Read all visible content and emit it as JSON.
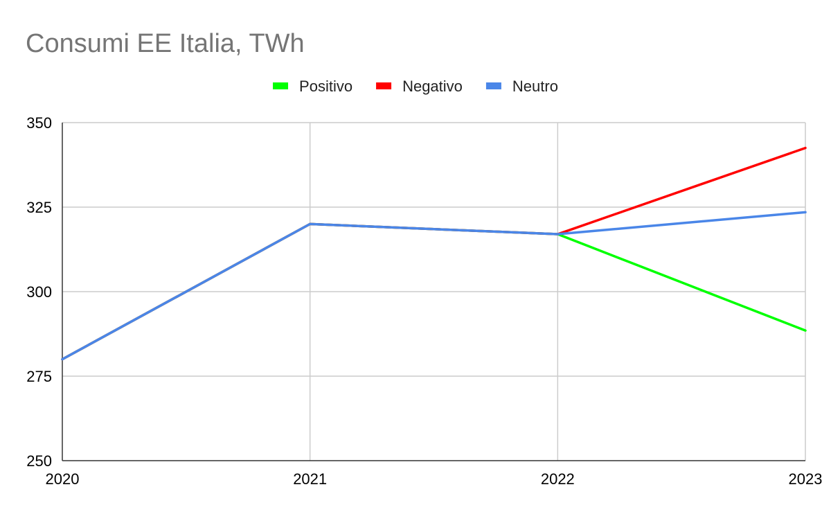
{
  "chart_data": {
    "type": "line",
    "title": "Consumi EE Italia, TWh",
    "xlabel": "",
    "ylabel": "",
    "x": [
      "2020",
      "2021",
      "2022",
      "2023"
    ],
    "ylim": [
      250,
      350
    ],
    "yticks": [
      250,
      275,
      300,
      325,
      350
    ],
    "grid": true,
    "legend_position": "top",
    "series": [
      {
        "name": "Positivo",
        "color": "#00ff00",
        "values": [
          280,
          320,
          317,
          288.5
        ]
      },
      {
        "name": "Negativo",
        "color": "#ff0000",
        "values": [
          280,
          320,
          317,
          342.5
        ]
      },
      {
        "name": "Neutro",
        "color": "#4a86e8",
        "values": [
          280,
          320,
          317,
          323.5
        ]
      }
    ]
  }
}
